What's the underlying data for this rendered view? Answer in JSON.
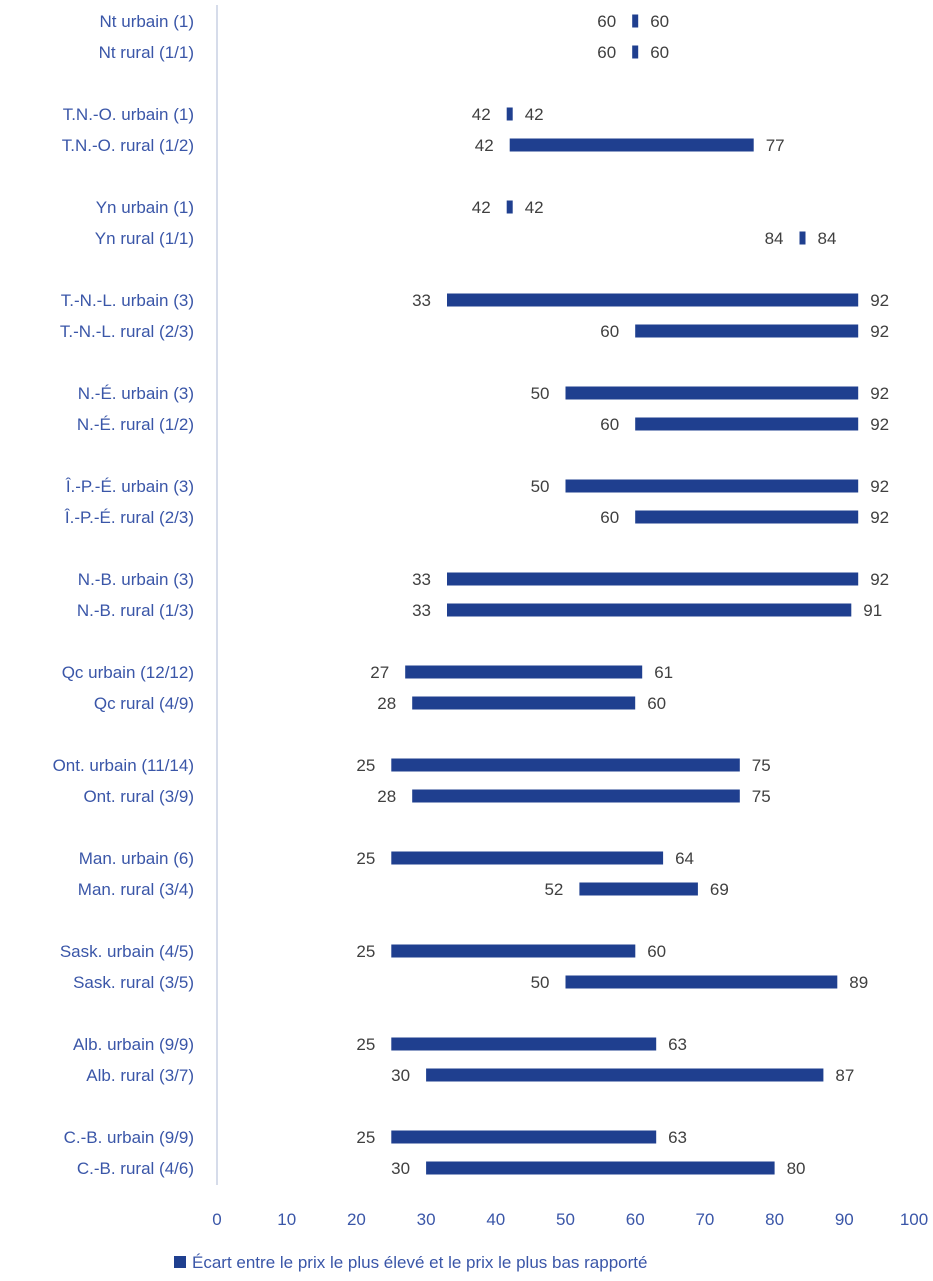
{
  "chart_data": {
    "type": "bar",
    "orientation": "horizontal-floating-range",
    "title": "",
    "xlabel": "",
    "ylabel": "",
    "xlim": [
      0,
      100
    ],
    "x_ticks": [
      0,
      10,
      20,
      30,
      40,
      50,
      60,
      70,
      80,
      90,
      100
    ],
    "tick_labels": [
      "0",
      "10",
      "20",
      "30",
      "40",
      "50",
      "60",
      "70",
      "80",
      "90",
      "100"
    ],
    "grid": false,
    "legend_position": "bottom",
    "series": [
      {
        "name": "Écart entre le prix le plus élevé et le prix le plus bas rapporté",
        "color": "#1f3f8f"
      }
    ],
    "rows": [
      {
        "label": "Nt urbain (1)",
        "low": 60,
        "high": 60,
        "group": 0
      },
      {
        "label": "Nt rural (1/1)",
        "low": 60,
        "high": 60,
        "group": 0
      },
      {
        "label": "T.N.-O. urbain (1)",
        "low": 42,
        "high": 42,
        "group": 1
      },
      {
        "label": "T.N.-O. rural (1/2)",
        "low": 42,
        "high": 77,
        "group": 1
      },
      {
        "label": "Yn urbain (1)",
        "low": 42,
        "high": 42,
        "group": 2
      },
      {
        "label": "Yn rural (1/1)",
        "low": 84,
        "high": 84,
        "group": 2
      },
      {
        "label": "T.-N.-L. urbain (3)",
        "low": 33,
        "high": 92,
        "group": 3
      },
      {
        "label": "T.-N.-L. rural (2/3)",
        "low": 60,
        "high": 92,
        "group": 3
      },
      {
        "label": "N.-É. urbain (3)",
        "low": 50,
        "high": 92,
        "group": 4
      },
      {
        "label": "N.-É. rural (1/2)",
        "low": 60,
        "high": 92,
        "group": 4
      },
      {
        "label": "Î.-P.-É. urbain (3)",
        "low": 50,
        "high": 92,
        "group": 5
      },
      {
        "label": "Î.-P.-É. rural (2/3)",
        "low": 60,
        "high": 92,
        "group": 5
      },
      {
        "label": "N.-B. urbain (3)",
        "low": 33,
        "high": 92,
        "group": 6
      },
      {
        "label": "N.-B. rural (1/3)",
        "low": 33,
        "high": 91,
        "group": 6
      },
      {
        "label": "Qc urbain (12/12)",
        "low": 27,
        "high": 61,
        "group": 7
      },
      {
        "label": "Qc rural (4/9)",
        "low": 28,
        "high": 60,
        "group": 7
      },
      {
        "label": "Ont. urbain (11/14)",
        "low": 25,
        "high": 75,
        "group": 8
      },
      {
        "label": "Ont. rural (3/9)",
        "low": 28,
        "high": 75,
        "group": 8
      },
      {
        "label": "Man. urbain (6)",
        "low": 25,
        "high": 64,
        "group": 9
      },
      {
        "label": "Man. rural (3/4)",
        "low": 52,
        "high": 69,
        "group": 9
      },
      {
        "label": "Sask. urbain (4/5)",
        "low": 25,
        "high": 60,
        "group": 10
      },
      {
        "label": "Sask. rural (3/5)",
        "low": 50,
        "high": 89,
        "group": 10
      },
      {
        "label": "Alb. urbain (9/9)",
        "low": 25,
        "high": 63,
        "group": 11
      },
      {
        "label": "Alb. rural (3/7)",
        "low": 30,
        "high": 87,
        "group": 11
      },
      {
        "label": "C.-B. urbain (9/9)",
        "low": 25,
        "high": 63,
        "group": 12
      },
      {
        "label": "C.-B. rural (4/6)",
        "low": 30,
        "high": 80,
        "group": 12
      }
    ]
  },
  "legend": {
    "label": "Écart entre le prix le plus élevé et le prix le plus bas rapporté",
    "color": "#1f3f8f"
  },
  "colors": {
    "bar": "#1f3f8f",
    "category_text": "#3a56a8",
    "value_text": "#404040",
    "axis_line": "#c9d0e3"
  }
}
